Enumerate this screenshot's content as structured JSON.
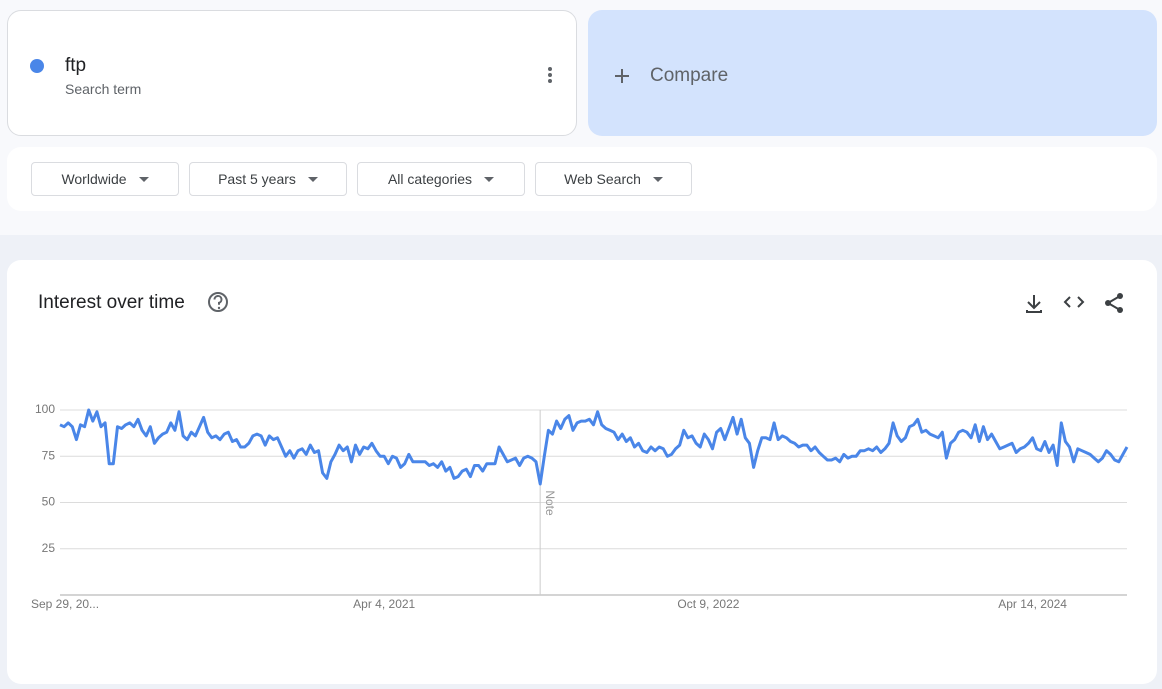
{
  "header": {
    "term": "ftp",
    "term_subtitle": "Search term",
    "compare": "Compare"
  },
  "filters": [
    "Worldwide",
    "Past 5 years",
    "All categories",
    "Web Search"
  ],
  "chart_data": {
    "type": "line",
    "title": "Interest over time",
    "color": "#4a86e8",
    "grid": true,
    "ylim": [
      0,
      100
    ],
    "yticks": [
      25,
      50,
      75,
      100
    ],
    "annotations": [
      {
        "text": "Note",
        "at": 117
      }
    ],
    "categories": [
      "Sep 29, 20...",
      null,
      null,
      null,
      null,
      null,
      null,
      null,
      null,
      null,
      null,
      null,
      null,
      null,
      null,
      null,
      null,
      null,
      null,
      null,
      null,
      null,
      null,
      null,
      null,
      null,
      null,
      null,
      null,
      null,
      null,
      null,
      null,
      null,
      null,
      null,
      null,
      null,
      null,
      null,
      null,
      null,
      null,
      null,
      null,
      null,
      null,
      null,
      null,
      null,
      null,
      null,
      null,
      null,
      null,
      null,
      null,
      null,
      null,
      null,
      null,
      null,
      null,
      null,
      null,
      null,
      null,
      null,
      null,
      null,
      null,
      null,
      null,
      null,
      null,
      null,
      null,
      null,
      null,
      "Apr 4, 2021",
      null,
      null,
      null,
      null,
      null,
      null,
      null,
      null,
      null,
      null,
      null,
      null,
      null,
      null,
      null,
      null,
      null,
      null,
      null,
      null,
      null,
      null,
      null,
      null,
      null,
      null,
      null,
      null,
      null,
      null,
      null,
      null,
      null,
      null,
      null,
      null,
      null,
      null,
      null,
      null,
      null,
      null,
      null,
      null,
      null,
      null,
      null,
      null,
      null,
      null,
      null,
      null,
      null,
      null,
      null,
      null,
      null,
      null,
      null,
      null,
      null,
      null,
      null,
      null,
      null,
      null,
      null,
      null,
      null,
      null,
      null,
      null,
      null,
      null,
      null,
      null,
      null,
      null,
      "Oct 9, 2022",
      null,
      null,
      null,
      null,
      null,
      null,
      null,
      null,
      null,
      null,
      null,
      null,
      null,
      null,
      null,
      null,
      null,
      null,
      null,
      null,
      null,
      null,
      null,
      null,
      null,
      null,
      null,
      null,
      null,
      null,
      null,
      null,
      null,
      null,
      null,
      null,
      null,
      null,
      null,
      null,
      null,
      null,
      null,
      null,
      null,
      null,
      null,
      null,
      null,
      null,
      null,
      null,
      null,
      null,
      null,
      null,
      null,
      null,
      null,
      null,
      null,
      null,
      null,
      null,
      null,
      null,
      null,
      null,
      null,
      null,
      null,
      null,
      null,
      null,
      null,
      null,
      null,
      null,
      "Apr 14, 2024",
      null,
      null,
      null,
      null,
      null,
      null,
      null,
      null,
      null,
      null,
      null,
      null,
      null,
      null,
      null,
      null,
      null,
      null,
      null,
      null,
      null,
      null,
      null
    ],
    "values": [
      92,
      91,
      93,
      91,
      84,
      92,
      91,
      100,
      94,
      99,
      91,
      93,
      71,
      71,
      91,
      90,
      92,
      93,
      91,
      95,
      89,
      86,
      91,
      82,
      85,
      87,
      88,
      93,
      89,
      99,
      86,
      84,
      88,
      86,
      91,
      96,
      88,
      85,
      86,
      84,
      87,
      88,
      83,
      84,
      80,
      80,
      82,
      86,
      87,
      86,
      81,
      86,
      84,
      85,
      80,
      75,
      78,
      74,
      78,
      79,
      76,
      81,
      77,
      78,
      66,
      63,
      72,
      76,
      81,
      78,
      80,
      72,
      81,
      76,
      80,
      79,
      82,
      78,
      75,
      75,
      71,
      75,
      74,
      69,
      71,
      76,
      72,
      72,
      72,
      72,
      70,
      71,
      69,
      72,
      67,
      69,
      63,
      64,
      67,
      68,
      64,
      70,
      70,
      67,
      71,
      71,
      71,
      80,
      76,
      72,
      73,
      74,
      70,
      74,
      75,
      74,
      72,
      60,
      75,
      89,
      87,
      94,
      90,
      95,
      97,
      89,
      93,
      94,
      94,
      95,
      92,
      99,
      92,
      90,
      89,
      88,
      84,
      87,
      83,
      85,
      80,
      82,
      78,
      77,
      80,
      78,
      80,
      79,
      75,
      76,
      79,
      81,
      89,
      85,
      86,
      82,
      80,
      87,
      84,
      79,
      88,
      90,
      84,
      90,
      96,
      87,
      95,
      85,
      82,
      69,
      78,
      85,
      85,
      84,
      93,
      84,
      86,
      85,
      83,
      82,
      80,
      81,
      81,
      78,
      80,
      77,
      75,
      73,
      73,
      74,
      72,
      76,
      74,
      75,
      75,
      78,
      78,
      79,
      78,
      80,
      77,
      79,
      82,
      93,
      86,
      83,
      85,
      91,
      92,
      95,
      88,
      89,
      87,
      86,
      85,
      88,
      74,
      82,
      84,
      88,
      89,
      88,
      85,
      92,
      83,
      91,
      84,
      87,
      83,
      79,
      80,
      81,
      82,
      77,
      79,
      80,
      82,
      85,
      79,
      78,
      83,
      77,
      81,
      70,
      93,
      83,
      80,
      72,
      79,
      78,
      77,
      76,
      74,
      72,
      74,
      78,
      76,
      73,
      72,
      76,
      80
    ]
  }
}
